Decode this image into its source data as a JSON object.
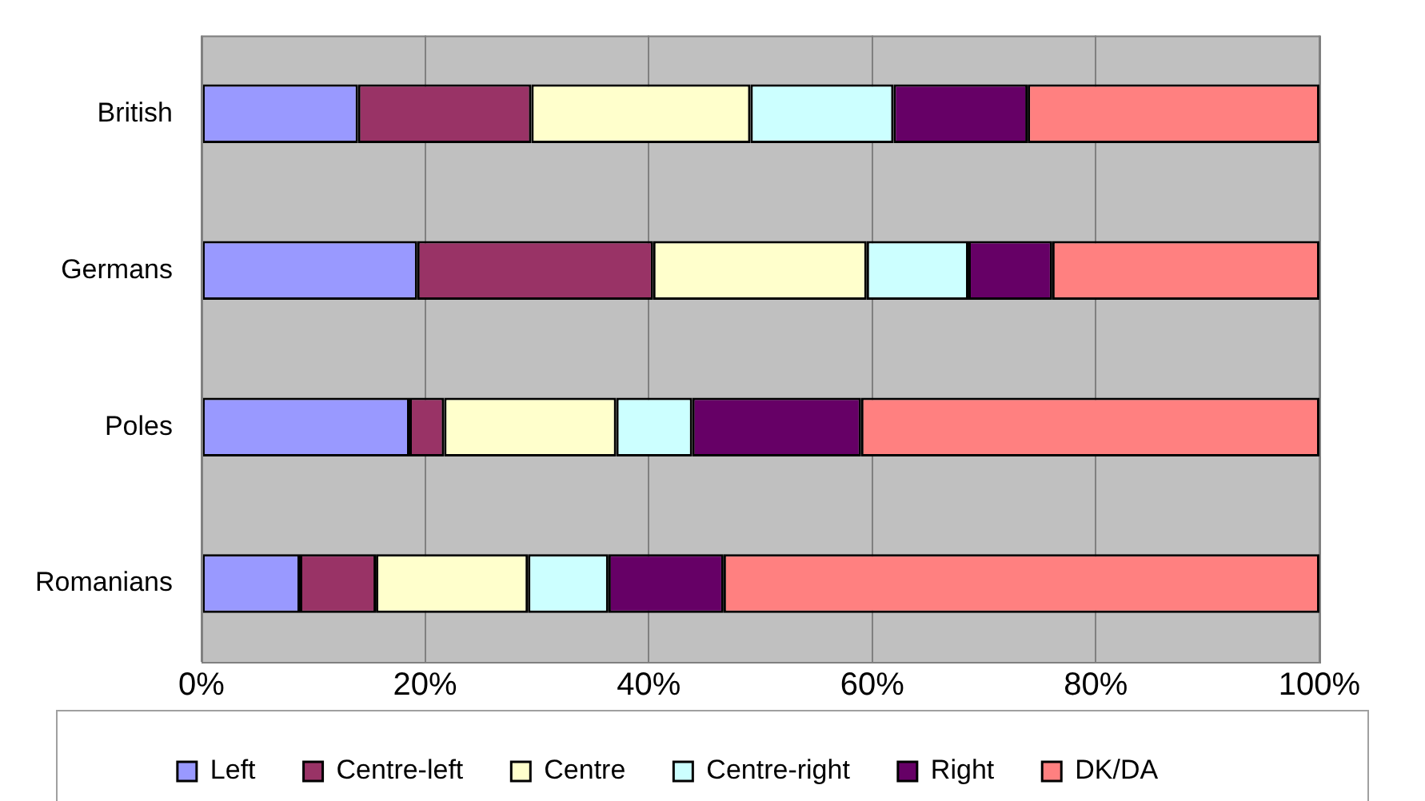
{
  "chart_data": {
    "type": "bar",
    "orientation": "horizontal",
    "stacked": true,
    "categories": [
      "British",
      "Germans",
      "Poles",
      "Romanians"
    ],
    "series": [
      {
        "name": "Left",
        "color": "#9999ff",
        "values": [
          14.0,
          19.3,
          18.6,
          8.8
        ]
      },
      {
        "name": "Centre-left",
        "color": "#993366",
        "values": [
          15.5,
          21.1,
          3.1,
          6.8
        ]
      },
      {
        "name": "Centre",
        "color": "#ffffcc",
        "values": [
          19.6,
          19.1,
          15.4,
          13.6
        ]
      },
      {
        "name": "Centre-right",
        "color": "#ccffff",
        "values": [
          12.8,
          9.1,
          6.8,
          7.2
        ]
      },
      {
        "name": "Right",
        "color": "#660066",
        "values": [
          12.0,
          7.5,
          15.1,
          10.3
        ]
      },
      {
        "name": "DK/DA",
        "color": "#ff8080",
        "values": [
          26.1,
          23.9,
          41.0,
          53.3
        ]
      }
    ],
    "xlim": [
      0,
      100
    ],
    "xticks": [
      {
        "value": 0,
        "label": "0%"
      },
      {
        "value": 20,
        "label": "20%"
      },
      {
        "value": 40,
        "label": "40%"
      },
      {
        "value": 60,
        "label": "60%"
      },
      {
        "value": 80,
        "label": "80%"
      },
      {
        "value": 100,
        "label": "100%"
      }
    ],
    "grid": "x",
    "legend": "bottom"
  }
}
